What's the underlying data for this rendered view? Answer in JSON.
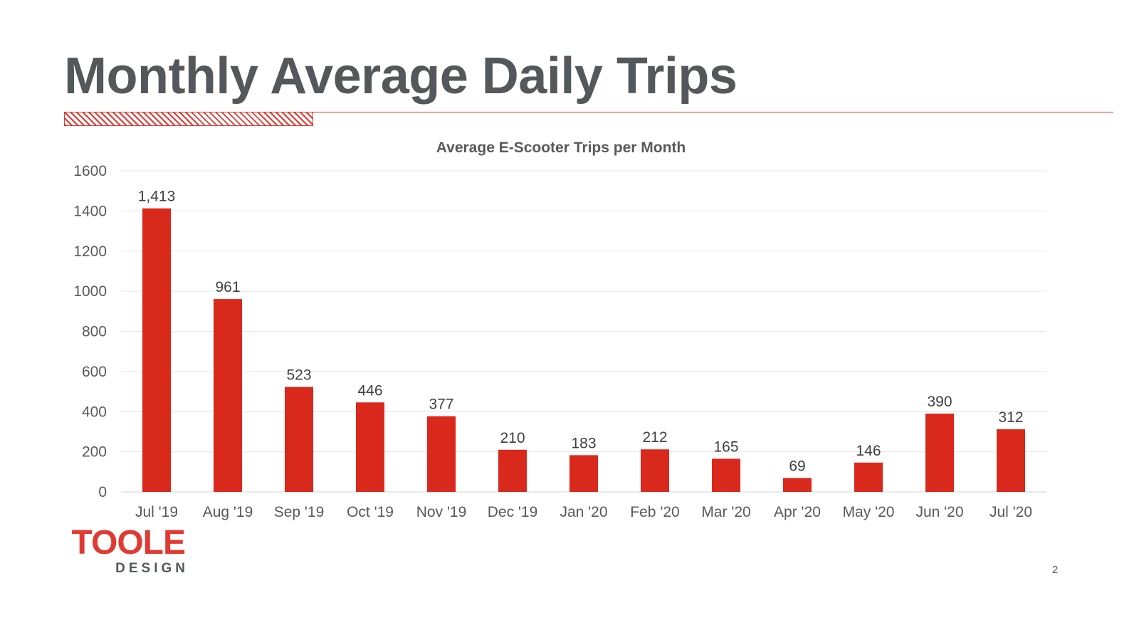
{
  "slide": {
    "title": "Monthly Average Daily Trips",
    "page_number": "2",
    "logo": {
      "top": "TOOLE",
      "bottom": "DESIGN"
    }
  },
  "colors": {
    "accent": "#e03a32",
    "bar": "#d9291c",
    "title_text": "#54585a",
    "axis_text": "#595959"
  },
  "chart_data": {
    "type": "bar",
    "title": "Average E-Scooter Trips per Month",
    "xlabel": "",
    "ylabel": "",
    "categories": [
      "Jul '19",
      "Aug '19",
      "Sep '19",
      "Oct '19",
      "Nov '19",
      "Dec '19",
      "Jan '20",
      "Feb '20",
      "Mar '20",
      "Apr '20",
      "May '20",
      "Jun '20",
      "Jul '20"
    ],
    "values": [
      1413,
      961,
      523,
      446,
      377,
      210,
      183,
      212,
      165,
      69,
      146,
      390,
      312
    ],
    "data_labels": [
      "1,413",
      "961",
      "523",
      "446",
      "377",
      "210",
      "183",
      "212",
      "165",
      "69",
      "146",
      "390",
      "312"
    ],
    "ylim": [
      0,
      1600
    ],
    "yticks": [
      0,
      200,
      400,
      600,
      800,
      1000,
      1200,
      1400,
      1600
    ],
    "grid": true,
    "legend": "none"
  }
}
